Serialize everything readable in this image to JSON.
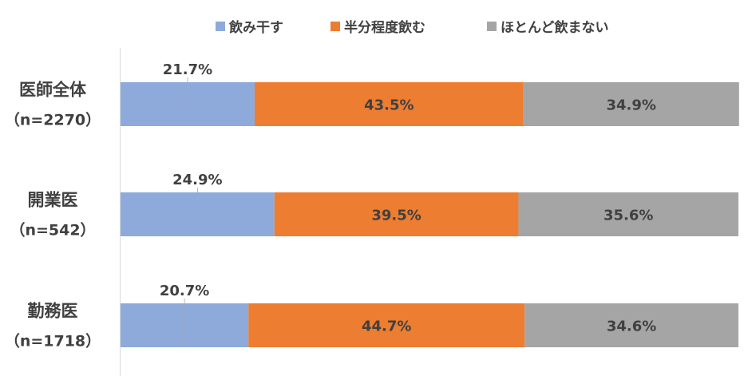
{
  "chart_data": {
    "type": "bar",
    "orientation": "horizontal",
    "stacked": true,
    "percent_stacked": true,
    "legend_position": "top",
    "grid": false,
    "xlim": [
      0,
      100
    ],
    "categories": [
      {
        "name": "医師全体",
        "n": "（n=2270）"
      },
      {
        "name": "開業医",
        "n": "（n=542）"
      },
      {
        "name": "勤務医",
        "n": "（n=1718）"
      }
    ],
    "series": [
      {
        "name": "飲み干す",
        "color": "#8eaadb",
        "values": [
          21.7,
          24.9,
          20.7
        ],
        "labels": [
          "21.7%",
          "24.9%",
          "20.7%"
        ],
        "label_position": "above"
      },
      {
        "name": "半分程度飲む",
        "color": "#ed7d31",
        "values": [
          43.5,
          39.5,
          44.7
        ],
        "labels": [
          "43.5%",
          "39.5%",
          "44.7%"
        ],
        "label_position": "center"
      },
      {
        "name": "ほとんど飲まない",
        "color": "#a5a5a5",
        "values": [
          34.9,
          35.6,
          34.6
        ],
        "labels": [
          "34.9%",
          "35.6%",
          "34.6%"
        ],
        "label_position": "center"
      }
    ]
  }
}
